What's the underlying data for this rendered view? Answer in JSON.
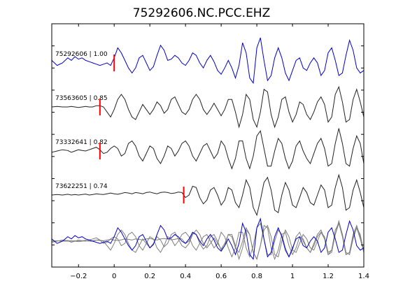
{
  "chart_data": {
    "type": "line",
    "title": "75292606.NC.PCC.EHZ",
    "xlabel": "",
    "ylabel": "",
    "xlim": [
      -0.35,
      1.4
    ],
    "x_ticks": [
      -0.2,
      0,
      0.2,
      0.4,
      0.6,
      0.8,
      1,
      1.2,
      1.4
    ],
    "x_tick_labels": [
      "−0.2",
      "0",
      "0.2",
      "0.4",
      "0.6",
      "0.8",
      "1",
      "1.2",
      "1.4"
    ],
    "grid": false,
    "colors": {
      "reference": "#0000cc",
      "correlated": "#222222",
      "overlay_gray": "#7f7f7f",
      "pick": "#ff0000",
      "axes": "#000000"
    },
    "traces": [
      {
        "label": "75292606 | 1.00",
        "color": "#0000cc",
        "pick_time": 0.0,
        "x": [
          -0.35,
          -0.32,
          -0.29,
          -0.26,
          -0.24,
          -0.22,
          -0.2,
          -0.18,
          -0.16,
          -0.14,
          -0.12,
          -0.1,
          -0.08,
          -0.06,
          -0.04,
          -0.02,
          0,
          0.02,
          0.04,
          0.06,
          0.08,
          0.1,
          0.12,
          0.14,
          0.16,
          0.18,
          0.2,
          0.22,
          0.24,
          0.26,
          0.28,
          0.3,
          0.32,
          0.34,
          0.36,
          0.38,
          0.4,
          0.42,
          0.44,
          0.46,
          0.48,
          0.5,
          0.52,
          0.54,
          0.56,
          0.58,
          0.6,
          0.62,
          0.64,
          0.66,
          0.68,
          0.7,
          0.72,
          0.74,
          0.76,
          0.78,
          0.8,
          0.82,
          0.84,
          0.86,
          0.88,
          0.9,
          0.92,
          0.94,
          0.96,
          0.98,
          1,
          1.02,
          1.04,
          1.06,
          1.08,
          1.1,
          1.12,
          1.14,
          1.16,
          1.18,
          1.2,
          1.22,
          1.24,
          1.26,
          1.28,
          1.3,
          1.32,
          1.34,
          1.36,
          1.38,
          1.4
        ],
        "y": [
          0.1,
          -0.1,
          0,
          0.2,
          0.1,
          0.25,
          0.15,
          0.2,
          0.1,
          0.05,
          0,
          -0.05,
          -0.1,
          -0.05,
          0,
          -0.1,
          0.2,
          0.6,
          0.4,
          0.1,
          -0.2,
          -0.4,
          -0.2,
          0.2,
          0.3,
          0,
          -0.3,
          -0.15,
          0.3,
          0.7,
          0.5,
          0.1,
          0.15,
          0.3,
          0.2,
          0,
          -0.1,
          0.1,
          0.4,
          0.3,
          0,
          -0.2,
          0.1,
          0.3,
          0.05,
          -0.3,
          -0.45,
          -0.2,
          0.1,
          -0.2,
          -0.6,
          -0.1,
          0.8,
          0.4,
          -0.6,
          -0.8,
          0.6,
          1.0,
          0.1,
          -0.7,
          -0.5,
          0.2,
          0.6,
          0.2,
          -0.4,
          -0.7,
          -0.3,
          0.1,
          0.2,
          -0.2,
          -0.3,
          0,
          0.2,
          0,
          -0.5,
          -0.3,
          0.4,
          0.6,
          0.1,
          -0.5,
          -0.4,
          0.3,
          0.9,
          0.5,
          -0.2,
          -0.4,
          -0.3
        ]
      },
      {
        "label": "73563605 | 0.85",
        "color": "#222222",
        "pick_time": -0.08,
        "x": [
          -0.35,
          -0.32,
          -0.29,
          -0.26,
          -0.24,
          -0.22,
          -0.2,
          -0.18,
          -0.16,
          -0.14,
          -0.12,
          -0.1,
          -0.08,
          -0.06,
          -0.04,
          -0.02,
          0,
          0.02,
          0.04,
          0.06,
          0.08,
          0.1,
          0.12,
          0.14,
          0.16,
          0.18,
          0.2,
          0.22,
          0.24,
          0.26,
          0.28,
          0.3,
          0.32,
          0.34,
          0.36,
          0.38,
          0.4,
          0.42,
          0.44,
          0.46,
          0.48,
          0.5,
          0.52,
          0.54,
          0.56,
          0.58,
          0.6,
          0.62,
          0.64,
          0.66,
          0.68,
          0.7,
          0.72,
          0.74,
          0.76,
          0.78,
          0.8,
          0.82,
          0.84,
          0.86,
          0.88,
          0.9,
          0.92,
          0.94,
          0.96,
          0.98,
          1,
          1.02,
          1.04,
          1.06,
          1.08,
          1.1,
          1.12,
          1.14,
          1.16,
          1.18,
          1.2,
          1.22,
          1.24,
          1.26,
          1.28,
          1.3,
          1.32,
          1.34,
          1.36,
          1.38,
          1.4
        ],
        "y": [
          0,
          0.02,
          0,
          0,
          0.02,
          0,
          -0.02,
          0,
          0.02,
          0,
          0,
          0.05,
          0.05,
          0,
          -0.2,
          -0.4,
          -0.1,
          0.3,
          0.5,
          0.3,
          -0.1,
          -0.4,
          -0.5,
          -0.2,
          0.1,
          -0.1,
          -0.3,
          -0.1,
          0.2,
          0.05,
          -0.25,
          -0.1,
          0.3,
          0.4,
          0.1,
          -0.2,
          -0.3,
          -0.1,
          0.3,
          0.5,
          0.3,
          -0.1,
          -0.3,
          -0.1,
          0.15,
          -0.1,
          -0.35,
          -0.1,
          0.3,
          0.3,
          -0.2,
          -0.8,
          -0.3,
          0.5,
          0.3,
          -0.5,
          -0.8,
          -0.2,
          0.7,
          0.6,
          -0.3,
          -0.8,
          -0.4,
          0.3,
          0.4,
          -0.2,
          -0.6,
          -0.3,
          0.2,
          0.1,
          -0.3,
          -0.5,
          -0.2,
          0.2,
          0.4,
          0.1,
          -0.6,
          -0.4,
          0.5,
          0.8,
          0.2,
          -0.6,
          -0.5,
          0.3,
          0.7,
          0.2,
          -0.4
        ]
      },
      {
        "label": "73332641 | 0.82",
        "color": "#222222",
        "pick_time": -0.08,
        "x": [
          -0.35,
          -0.32,
          -0.29,
          -0.26,
          -0.24,
          -0.22,
          -0.2,
          -0.18,
          -0.16,
          -0.14,
          -0.12,
          -0.1,
          -0.08,
          -0.06,
          -0.04,
          -0.02,
          0,
          0.02,
          0.04,
          0.06,
          0.08,
          0.1,
          0.12,
          0.14,
          0.16,
          0.18,
          0.2,
          0.22,
          0.24,
          0.26,
          0.28,
          0.3,
          0.32,
          0.34,
          0.36,
          0.38,
          0.4,
          0.42,
          0.44,
          0.46,
          0.48,
          0.5,
          0.52,
          0.54,
          0.56,
          0.58,
          0.6,
          0.62,
          0.64,
          0.66,
          0.68,
          0.7,
          0.72,
          0.74,
          0.76,
          0.78,
          0.8,
          0.82,
          0.84,
          0.86,
          0.88,
          0.9,
          0.92,
          0.94,
          0.96,
          0.98,
          1,
          1.02,
          1.04,
          1.06,
          1.08,
          1.1,
          1.12,
          1.14,
          1.16,
          1.18,
          1.2,
          1.22,
          1.24,
          1.26,
          1.28,
          1.3,
          1.32,
          1.34,
          1.36,
          1.38,
          1.4
        ],
        "y": [
          -0.05,
          0,
          0.05,
          0.02,
          -0.05,
          0,
          0.05,
          0.02,
          0,
          0.05,
          0.1,
          0.15,
          0.05,
          -0.1,
          -0.05,
          0.1,
          0.2,
          0.1,
          -0.2,
          -0.1,
          0.3,
          0.4,
          0.2,
          -0.2,
          -0.4,
          -0.1,
          0.2,
          0.1,
          -0.3,
          -0.5,
          -0.2,
          0.2,
          0.1,
          -0.2,
          0,
          0.3,
          0.4,
          0.2,
          -0.2,
          -0.4,
          -0.1,
          0.2,
          0.3,
          0,
          -0.3,
          -0.1,
          0.4,
          0.2,
          -0.3,
          -0.7,
          -0.3,
          0.4,
          0.4,
          -0.3,
          -0.7,
          -0.2,
          0.6,
          0.8,
          0.1,
          -0.6,
          -0.6,
          0,
          0.5,
          0.3,
          -0.3,
          -0.7,
          -0.4,
          0.2,
          0.4,
          0,
          -0.3,
          -0.5,
          -0.1,
          0.3,
          0.5,
          0.1,
          -0.6,
          -0.5,
          0.3,
          0.9,
          0.3,
          -0.5,
          -0.6,
          0.1,
          0.6,
          0.3,
          -0.5
        ]
      },
      {
        "label": "73622251 | 0.74",
        "color": "#222222",
        "pick_time": 0.39,
        "x": [
          -0.35,
          -0.32,
          -0.29,
          -0.26,
          -0.24,
          -0.22,
          -0.2,
          -0.18,
          -0.16,
          -0.14,
          -0.12,
          -0.1,
          -0.08,
          -0.06,
          -0.04,
          -0.02,
          0,
          0.02,
          0.04,
          0.06,
          0.08,
          0.1,
          0.12,
          0.14,
          0.16,
          0.18,
          0.2,
          0.22,
          0.24,
          0.26,
          0.28,
          0.3,
          0.32,
          0.34,
          0.36,
          0.38,
          0.4,
          0.42,
          0.44,
          0.46,
          0.48,
          0.5,
          0.52,
          0.54,
          0.56,
          0.58,
          0.6,
          0.62,
          0.64,
          0.66,
          0.68,
          0.7,
          0.72,
          0.74,
          0.76,
          0.78,
          0.8,
          0.82,
          0.84,
          0.86,
          0.88,
          0.9,
          0.92,
          0.94,
          0.96,
          0.98,
          1,
          1.02,
          1.04,
          1.06,
          1.08,
          1.1,
          1.12,
          1.14,
          1.16,
          1.18,
          1.2,
          1.22,
          1.24,
          1.26,
          1.28,
          1.3,
          1.32,
          1.34,
          1.36,
          1.38,
          1.4
        ],
        "y": [
          0,
          0.02,
          0,
          0.03,
          0,
          0.02,
          0,
          0.02,
          0.04,
          0,
          0.02,
          0.05,
          0.03,
          0.02,
          0.05,
          0.08,
          0.05,
          0.03,
          0.06,
          0.1,
          0.08,
          0.05,
          0.1,
          0.08,
          0.05,
          0.1,
          0.12,
          0.08,
          0.05,
          0.1,
          0.12,
          0.1,
          0.06,
          0.08,
          0.12,
          0.1,
          -0.1,
          0,
          0.35,
          0.3,
          -0.1,
          -0.35,
          -0.2,
          0.2,
          0.3,
          0,
          -0.4,
          -0.2,
          0.3,
          0.2,
          -0.3,
          -0.5,
          0,
          0.6,
          0.3,
          -0.5,
          -0.8,
          -0.2,
          0.5,
          0.7,
          0.2,
          -0.6,
          -0.7,
          0,
          0.5,
          0.2,
          -0.4,
          -0.5,
          -0.1,
          0.3,
          0.1,
          -0.3,
          -0.4,
          0,
          0.4,
          0.2,
          -0.5,
          -0.4,
          0.3,
          0.8,
          0.3,
          -0.6,
          -0.5,
          0.2,
          0.6,
          0.1,
          -0.5
        ]
      }
    ],
    "overlay": {
      "description_none": true
    }
  }
}
